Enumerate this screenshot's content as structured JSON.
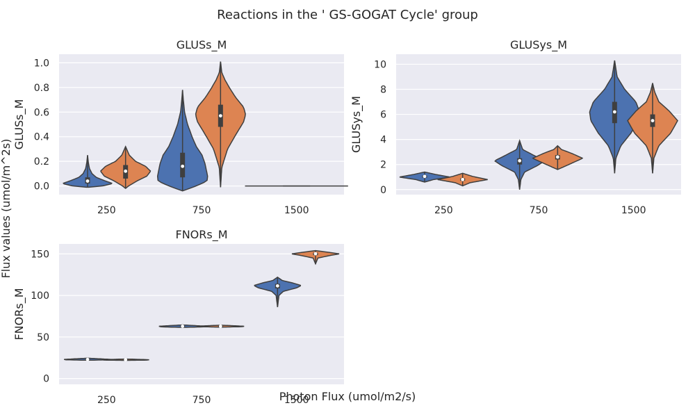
{
  "figure": {
    "title": "Reactions in the ' GS-GOGAT Cycle' group",
    "ylabel": "Flux values (umol/m^2s)",
    "xlabel": "Photon Flux (umol/m2/s)"
  },
  "colors": {
    "series_a": "#4c72b0",
    "series_b": "#dd8452",
    "panel_bg": "#eaeaf2",
    "grid": "#ffffff",
    "edge": "#3f3f3f"
  },
  "chart_data": [
    {
      "type": "violin",
      "title": "GLUSs_M",
      "ylabel": "GLUSs_M",
      "categories": [
        "250",
        "750",
        "1500"
      ],
      "ylim": [
        -0.07,
        1.07
      ],
      "yticks": [
        0.0,
        0.2,
        0.4,
        0.6,
        0.8,
        1.0
      ],
      "ytick_labels": [
        "0.0",
        "0.2",
        "0.4",
        "0.6",
        "0.8",
        "1.0"
      ],
      "grid": true,
      "violins": [
        {
          "category": "250",
          "series": 0,
          "min": -0.01,
          "max": 0.25,
          "q1": 0.02,
          "median": 0.04,
          "q3": 0.07,
          "profile": [
            [
              -0.01,
              0.05
            ],
            [
              0.0,
              0.6
            ],
            [
              0.02,
              1.0
            ],
            [
              0.04,
              0.72
            ],
            [
              0.07,
              0.35
            ],
            [
              0.1,
              0.18
            ],
            [
              0.14,
              0.08
            ],
            [
              0.19,
              0.03
            ],
            [
              0.25,
              0.0
            ]
          ]
        },
        {
          "category": "250",
          "series": 1,
          "min": -0.02,
          "max": 0.32,
          "q1": 0.06,
          "median": 0.12,
          "q3": 0.17,
          "profile": [
            [
              -0.02,
              0.0
            ],
            [
              0.0,
              0.12
            ],
            [
              0.04,
              0.45
            ],
            [
              0.08,
              0.85
            ],
            [
              0.12,
              1.0
            ],
            [
              0.16,
              0.8
            ],
            [
              0.2,
              0.4
            ],
            [
              0.25,
              0.15
            ],
            [
              0.32,
              0.0
            ]
          ]
        },
        {
          "category": "750",
          "series": 0,
          "min": -0.04,
          "max": 0.78,
          "q1": 0.07,
          "median": 0.16,
          "q3": 0.27,
          "profile": [
            [
              -0.04,
              0.0
            ],
            [
              0.0,
              0.55
            ],
            [
              0.04,
              0.98
            ],
            [
              0.08,
              1.0
            ],
            [
              0.12,
              0.96
            ],
            [
              0.18,
              0.9
            ],
            [
              0.25,
              0.78
            ],
            [
              0.32,
              0.55
            ],
            [
              0.4,
              0.38
            ],
            [
              0.5,
              0.2
            ],
            [
              0.6,
              0.08
            ],
            [
              0.7,
              0.03
            ],
            [
              0.78,
              0.0
            ]
          ]
        },
        {
          "category": "750",
          "series": 1,
          "min": -0.01,
          "max": 1.01,
          "q1": 0.48,
          "median": 0.57,
          "q3": 0.66,
          "profile": [
            [
              -0.01,
              0.0
            ],
            [
              0.15,
              0.05
            ],
            [
              0.3,
              0.28
            ],
            [
              0.42,
              0.62
            ],
            [
              0.52,
              0.92
            ],
            [
              0.58,
              1.0
            ],
            [
              0.64,
              0.92
            ],
            [
              0.72,
              0.6
            ],
            [
              0.8,
              0.35
            ],
            [
              0.86,
              0.18
            ],
            [
              0.92,
              0.05
            ],
            [
              1.01,
              0.0
            ]
          ]
        },
        {
          "category": "1500",
          "series": 0,
          "min": 0.0,
          "max": 0.0,
          "flat": true
        },
        {
          "category": "1500",
          "series": 1,
          "min": 0.0,
          "max": 0.0,
          "flat": true
        }
      ]
    },
    {
      "type": "violin",
      "title": "GLUSys_M",
      "ylabel": "GLUSys_M",
      "categories": [
        "250",
        "750",
        "1500"
      ],
      "ylim": [
        -0.4,
        10.8
      ],
      "yticks": [
        0,
        2,
        4,
        6,
        8,
        10
      ],
      "ytick_labels": [
        "0",
        "2",
        "4",
        "6",
        "8",
        "10"
      ],
      "grid": true,
      "violins": [
        {
          "category": "250",
          "series": 0,
          "min": 0.6,
          "max": 1.4,
          "q1": 0.95,
          "median": 1.05,
          "q3": 1.12,
          "profile": [
            [
              0.6,
              0.0
            ],
            [
              0.8,
              0.35
            ],
            [
              1.0,
              1.0
            ],
            [
              1.2,
              0.45
            ],
            [
              1.4,
              0.0
            ]
          ]
        },
        {
          "category": "250",
          "series": 1,
          "min": 0.3,
          "max": 1.3,
          "q1": 0.7,
          "median": 0.8,
          "q3": 0.9,
          "profile": [
            [
              0.3,
              0.0
            ],
            [
              0.55,
              0.3
            ],
            [
              0.8,
              1.0
            ],
            [
              1.05,
              0.4
            ],
            [
              1.3,
              0.0
            ]
          ]
        },
        {
          "category": "750",
          "series": 0,
          "min": 0.0,
          "max": 3.9,
          "q1": 2.0,
          "median": 2.3,
          "q3": 2.5,
          "profile": [
            [
              0.0,
              0.0
            ],
            [
              0.8,
              0.05
            ],
            [
              1.4,
              0.2
            ],
            [
              1.9,
              0.7
            ],
            [
              2.3,
              1.0
            ],
            [
              2.7,
              0.6
            ],
            [
              3.2,
              0.12
            ],
            [
              3.9,
              0.0
            ]
          ]
        },
        {
          "category": "750",
          "series": 1,
          "min": 1.6,
          "max": 3.5,
          "q1": 2.4,
          "median": 2.6,
          "q3": 2.75,
          "profile": [
            [
              1.6,
              0.0
            ],
            [
              2.0,
              0.45
            ],
            [
              2.5,
              1.0
            ],
            [
              2.9,
              0.55
            ],
            [
              3.2,
              0.15
            ],
            [
              3.5,
              0.0
            ]
          ]
        },
        {
          "category": "1500",
          "series": 0,
          "min": 1.3,
          "max": 10.3,
          "q1": 5.3,
          "median": 6.2,
          "q3": 7.0,
          "profile": [
            [
              1.3,
              0.0
            ],
            [
              2.5,
              0.05
            ],
            [
              3.5,
              0.25
            ],
            [
              4.5,
              0.65
            ],
            [
              5.5,
              0.95
            ],
            [
              6.2,
              1.0
            ],
            [
              7.0,
              0.85
            ],
            [
              8.0,
              0.4
            ],
            [
              9.0,
              0.1
            ],
            [
              10.3,
              0.0
            ]
          ]
        },
        {
          "category": "1500",
          "series": 1,
          "min": 1.3,
          "max": 8.5,
          "q1": 5.0,
          "median": 5.5,
          "q3": 6.0,
          "profile": [
            [
              1.3,
              0.0
            ],
            [
              2.5,
              0.05
            ],
            [
              3.5,
              0.25
            ],
            [
              4.5,
              0.72
            ],
            [
              5.5,
              1.0
            ],
            [
              6.3,
              0.65
            ],
            [
              7.0,
              0.25
            ],
            [
              7.8,
              0.08
            ],
            [
              8.5,
              0.0
            ]
          ]
        }
      ]
    },
    {
      "type": "violin",
      "title": "FNORs_M",
      "ylabel": "FNORs_M",
      "categories": [
        "250",
        "750",
        "1500"
      ],
      "ylim": [
        -7,
        162
      ],
      "yticks": [
        0,
        50,
        100,
        150
      ],
      "ytick_labels": [
        "0",
        "50",
        "100",
        "150"
      ],
      "grid": true,
      "violins": [
        {
          "category": "250",
          "series": 0,
          "min": 22,
          "max": 24.5,
          "q1": 22.6,
          "median": 23.0,
          "q3": 23.6,
          "profile": [
            [
              22,
              0.0
            ],
            [
              22.5,
              0.9
            ],
            [
              23,
              1.0
            ],
            [
              23.6,
              0.6
            ],
            [
              24.5,
              0.0
            ]
          ]
        },
        {
          "category": "250",
          "series": 1,
          "min": 21.8,
          "max": 23.5,
          "q1": 22.3,
          "median": 22.6,
          "q3": 23.0,
          "profile": [
            [
              21.8,
              0.0
            ],
            [
              22.2,
              0.9
            ],
            [
              22.6,
              1.0
            ],
            [
              23.0,
              0.6
            ],
            [
              23.5,
              0.0
            ]
          ]
        },
        {
          "category": "750",
          "series": 0,
          "min": 61.5,
          "max": 64.5,
          "q1": 62.4,
          "median": 62.9,
          "q3": 63.4,
          "profile": [
            [
              61.5,
              0.0
            ],
            [
              62.2,
              0.9
            ],
            [
              62.9,
              1.0
            ],
            [
              63.6,
              0.6
            ],
            [
              64.5,
              0.0
            ]
          ]
        },
        {
          "category": "750",
          "series": 1,
          "min": 61.8,
          "max": 64.2,
          "q1": 62.5,
          "median": 62.9,
          "q3": 63.3,
          "profile": [
            [
              61.8,
              0.0
            ],
            [
              62.4,
              0.9
            ],
            [
              62.9,
              1.0
            ],
            [
              63.5,
              0.6
            ],
            [
              64.2,
              0.0
            ]
          ]
        },
        {
          "category": "1500",
          "series": 0,
          "min": 86,
          "max": 122,
          "q1": 108.5,
          "median": 111.5,
          "q3": 114,
          "profile": [
            [
              86,
              0.0
            ],
            [
              100,
              0.06
            ],
            [
              105,
              0.25
            ],
            [
              109,
              0.8
            ],
            [
              112,
              1.0
            ],
            [
              115,
              0.65
            ],
            [
              118,
              0.2
            ],
            [
              122,
              0.0
            ]
          ]
        },
        {
          "category": "1500",
          "series": 1,
          "min": 138,
          "max": 154,
          "q1": 148.5,
          "median": 150.2,
          "q3": 151.5,
          "profile": [
            [
              138,
              0.0
            ],
            [
              145,
              0.1
            ],
            [
              148,
              0.6
            ],
            [
              150,
              1.0
            ],
            [
              152,
              0.55
            ],
            [
              154,
              0.0
            ]
          ]
        }
      ]
    }
  ]
}
